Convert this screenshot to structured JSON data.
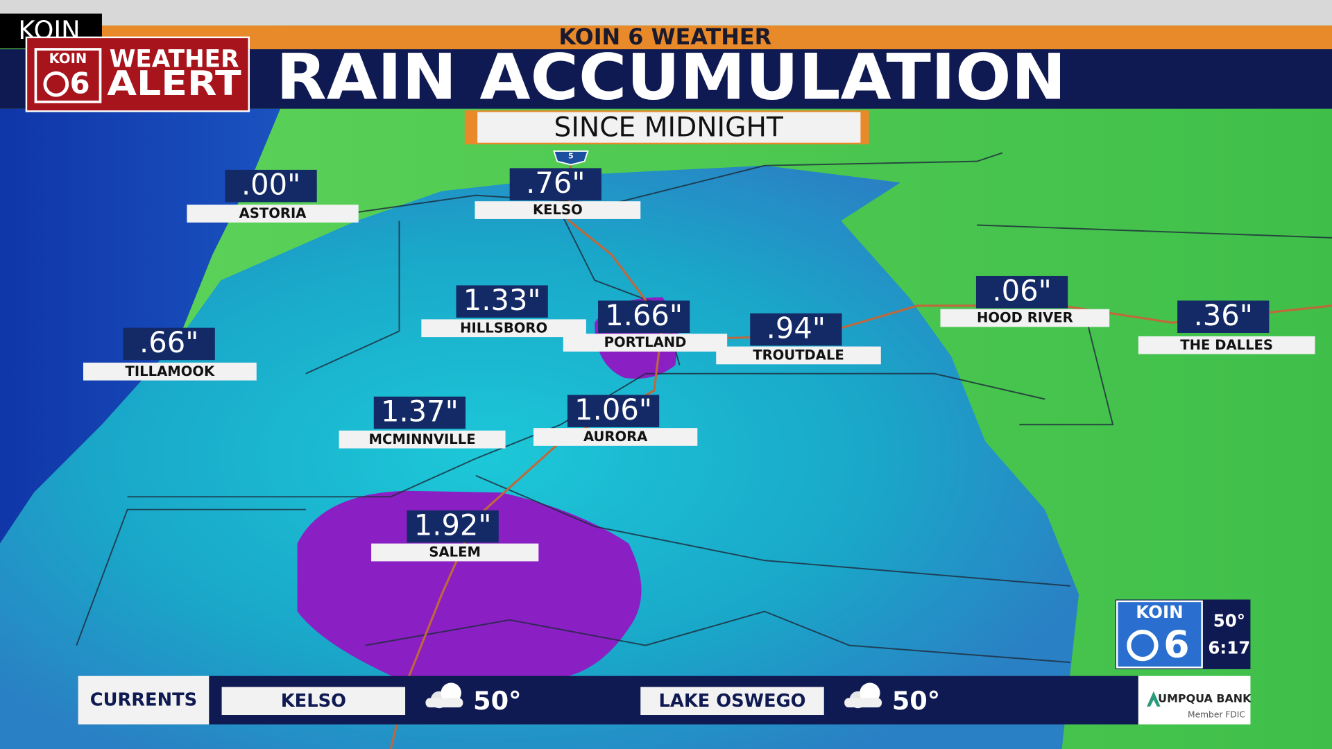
{
  "corner_tag": "KOIN",
  "header": {
    "network": "KOIN 6 WEATHER",
    "title": "RAIN ACCUMULATION",
    "subtitle": "SINCE MIDNIGHT",
    "badge": {
      "logo": "KOIN",
      "logo_number": "6",
      "line1": "WEATHER",
      "line2": "ALERT"
    }
  },
  "map": {
    "highway": "5",
    "locations": [
      {
        "name": "ASTORIA",
        "amount": ".00\""
      },
      {
        "name": "KELSO",
        "amount": ".76\""
      },
      {
        "name": "HILLSBORO",
        "amount": "1.33\""
      },
      {
        "name": "PORTLAND",
        "amount": "1.66\""
      },
      {
        "name": "TROUTDALE",
        "amount": ".94\""
      },
      {
        "name": "HOOD RIVER",
        "amount": ".06\""
      },
      {
        "name": "THE DALLES",
        "amount": ".36\""
      },
      {
        "name": "TILLAMOOK",
        "amount": ".66\""
      },
      {
        "name": "MCMINNVILLE",
        "amount": "1.37\""
      },
      {
        "name": "AURORA",
        "amount": "1.06\""
      },
      {
        "name": "SALEM",
        "amount": "1.92\""
      }
    ]
  },
  "currents": {
    "label": "CURRENTS",
    "items": [
      {
        "city": "KELSO",
        "temp": "50°"
      },
      {
        "city": "LAKE OSWEGO",
        "temp": "50°"
      }
    ],
    "sponsor": {
      "name": "UMPQUA BANK",
      "note": "Member FDIC"
    }
  },
  "station_bug": {
    "logo": "KOIN",
    "logo_number": "6",
    "temp": "50°",
    "time": "6:17"
  }
}
